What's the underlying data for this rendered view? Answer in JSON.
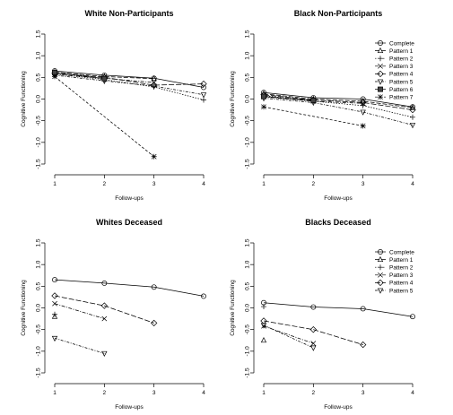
{
  "chart_data": [
    {
      "type": "line",
      "title": "White Non-Participants",
      "xlabel": "Follow-ups",
      "ylabel": "Cognitive Functioning",
      "xlim": [
        1,
        4
      ],
      "ylim": [
        -1.5,
        1.5
      ],
      "x_ticks": [
        "1",
        "2",
        "3",
        "4"
      ],
      "y_ticks": [
        "-1.5",
        "-1.0",
        "-0.5",
        "0.0",
        "0.5",
        "1.0",
        "1.5"
      ],
      "legend": false,
      "series": [
        {
          "name": "Complete",
          "marker": "circle",
          "dash": "",
          "x": [
            1,
            2,
            3,
            4
          ],
          "y": [
            0.65,
            0.55,
            0.48,
            0.27
          ]
        },
        {
          "name": "Pattern 1",
          "marker": "triangle",
          "dash": "5,2",
          "x": [
            1,
            2,
            3
          ],
          "y": [
            0.62,
            0.52,
            0.47
          ]
        },
        {
          "name": "Pattern 2",
          "marker": "plus",
          "dash": "1.5,1.5",
          "x": [
            1,
            2,
            3,
            4
          ],
          "y": [
            0.58,
            0.45,
            0.28,
            -0.02
          ]
        },
        {
          "name": "Pattern 3",
          "marker": "x",
          "dash": "4,1.5,1,1.5",
          "x": [
            1,
            2,
            3
          ],
          "y": [
            0.57,
            0.48,
            0.38
          ]
        },
        {
          "name": "Pattern 4",
          "marker": "diamond",
          "dash": "6,2",
          "x": [
            1,
            2,
            3,
            4
          ],
          "y": [
            0.6,
            0.5,
            0.32,
            0.35
          ]
        },
        {
          "name": "Pattern 5",
          "marker": "triangle-down",
          "dash": "3,1.5,1,1.5",
          "x": [
            1,
            2,
            3,
            4
          ],
          "y": [
            0.55,
            0.42,
            0.3,
            0.1
          ]
        },
        {
          "name": "Pattern 6",
          "marker": "square",
          "dash": "",
          "x": [
            1,
            2
          ],
          "y": [
            0.61,
            0.47
          ]
        },
        {
          "name": "Pattern 7",
          "marker": "star",
          "dash": "3,2",
          "x": [
            1,
            3
          ],
          "y": [
            0.52,
            -1.33
          ]
        }
      ]
    },
    {
      "type": "line",
      "title": "Black Non-Participants",
      "xlabel": "Follow-ups",
      "ylabel": "Cognitive Functioning",
      "xlim": [
        1,
        4
      ],
      "ylim": [
        -1.5,
        1.5
      ],
      "x_ticks": [
        "1",
        "2",
        "3",
        "4"
      ],
      "y_ticks": [
        "-1.5",
        "-1.0",
        "-0.5",
        "0.0",
        "0.5",
        "1.0",
        "1.5"
      ],
      "legend": true,
      "legend_position": "top-right",
      "series": [
        {
          "name": "Complete",
          "marker": "circle",
          "dash": "",
          "x": [
            1,
            2,
            3,
            4
          ],
          "y": [
            0.15,
            0.03,
            0.0,
            -0.18
          ]
        },
        {
          "name": "Pattern 1",
          "marker": "triangle",
          "dash": "5,2",
          "x": [
            1,
            2,
            3,
            4
          ],
          "y": [
            0.12,
            0.0,
            -0.05,
            -0.2
          ]
        },
        {
          "name": "Pattern 2",
          "marker": "plus",
          "dash": "1.5,1.5",
          "x": [
            1,
            2,
            3,
            4
          ],
          "y": [
            0.08,
            -0.05,
            -0.15,
            -0.42
          ]
        },
        {
          "name": "Pattern 3",
          "marker": "x",
          "dash": "4,1.5,1,1.5",
          "x": [
            1,
            2,
            3
          ],
          "y": [
            0.05,
            -0.05,
            -0.1
          ]
        },
        {
          "name": "Pattern 4",
          "marker": "diamond",
          "dash": "6,2",
          "x": [
            1,
            2,
            3,
            4
          ],
          "y": [
            0.1,
            -0.02,
            -0.08,
            -0.25
          ]
        },
        {
          "name": "Pattern 5",
          "marker": "triangle-down",
          "dash": "3,1.5,1,1.5",
          "x": [
            1,
            2,
            3,
            4
          ],
          "y": [
            0.02,
            -0.08,
            -0.3,
            -0.6
          ]
        },
        {
          "name": "Pattern 6",
          "marker": "square",
          "dash": "",
          "x": [
            1,
            2
          ],
          "y": [
            0.06,
            -0.03
          ]
        },
        {
          "name": "Pattern 7",
          "marker": "star",
          "dash": "3,2",
          "x": [
            1,
            3
          ],
          "y": [
            -0.18,
            -0.62
          ]
        }
      ]
    },
    {
      "type": "line",
      "title": "Whites Deceased",
      "xlabel": "Follow-ups",
      "ylabel": "Cognitive Functioning",
      "xlim": [
        1,
        4
      ],
      "ylim": [
        -1.5,
        1.5
      ],
      "x_ticks": [
        "1",
        "2",
        "3",
        "4"
      ],
      "y_ticks": [
        "-1.5",
        "-1.0",
        "-0.5",
        "0.0",
        "0.5",
        "1.0",
        "1.5"
      ],
      "legend": false,
      "series": [
        {
          "name": "Complete",
          "marker": "circle",
          "dash": "",
          "x": [
            1,
            2,
            3,
            4
          ],
          "y": [
            0.65,
            0.57,
            0.48,
            0.27
          ]
        },
        {
          "name": "Pattern 1",
          "marker": "triangle",
          "dash": "5,2",
          "x": [
            1
          ],
          "y": [
            -0.2
          ]
        },
        {
          "name": "Pattern 2",
          "marker": "plus",
          "dash": "1.5,1.5",
          "x": [
            1
          ],
          "y": [
            -0.15
          ]
        },
        {
          "name": "Pattern 3",
          "marker": "x",
          "dash": "4,1.5,1,1.5",
          "x": [
            1,
            2
          ],
          "y": [
            0.1,
            -0.25
          ]
        },
        {
          "name": "Pattern 4",
          "marker": "diamond",
          "dash": "6,2",
          "x": [
            1,
            2,
            3
          ],
          "y": [
            0.28,
            0.05,
            -0.35
          ]
        },
        {
          "name": "Pattern 5",
          "marker": "triangle-down",
          "dash": "3,1.5,1,1.5",
          "x": [
            1,
            2
          ],
          "y": [
            -0.7,
            -1.05
          ]
        }
      ]
    },
    {
      "type": "line",
      "title": "Blacks Deceased",
      "xlabel": "Follow-ups",
      "ylabel": "Cognitive Functioning",
      "xlim": [
        1,
        4
      ],
      "ylim": [
        -1.5,
        1.5
      ],
      "x_ticks": [
        "1",
        "2",
        "3",
        "4"
      ],
      "y_ticks": [
        "-1.5",
        "-1.0",
        "-0.5",
        "0.0",
        "0.5",
        "1.0",
        "1.5"
      ],
      "legend": true,
      "legend_position": "top-right",
      "series": [
        {
          "name": "Complete",
          "marker": "circle",
          "dash": "",
          "x": [
            1,
            2,
            3,
            4
          ],
          "y": [
            0.12,
            0.02,
            -0.02,
            -0.2
          ]
        },
        {
          "name": "Pattern 1",
          "marker": "triangle",
          "dash": "5,2",
          "x": [
            1
          ],
          "y": [
            -0.75
          ]
        },
        {
          "name": "Pattern 2",
          "marker": "plus",
          "dash": "1.5,1.5",
          "x": [
            1
          ],
          "y": [
            0.03
          ]
        },
        {
          "name": "Pattern 3",
          "marker": "x",
          "dash": "4,1.5,1,1.5",
          "x": [
            1,
            2
          ],
          "y": [
            -0.42,
            -0.82
          ]
        },
        {
          "name": "Pattern 4",
          "marker": "diamond",
          "dash": "6,2",
          "x": [
            1,
            2,
            3
          ],
          "y": [
            -0.3,
            -0.5,
            -0.85
          ]
        },
        {
          "name": "Pattern 5",
          "marker": "triangle-down",
          "dash": "3,1.5,1,1.5",
          "x": [
            1,
            2
          ],
          "y": [
            -0.4,
            -0.92
          ]
        }
      ]
    }
  ]
}
